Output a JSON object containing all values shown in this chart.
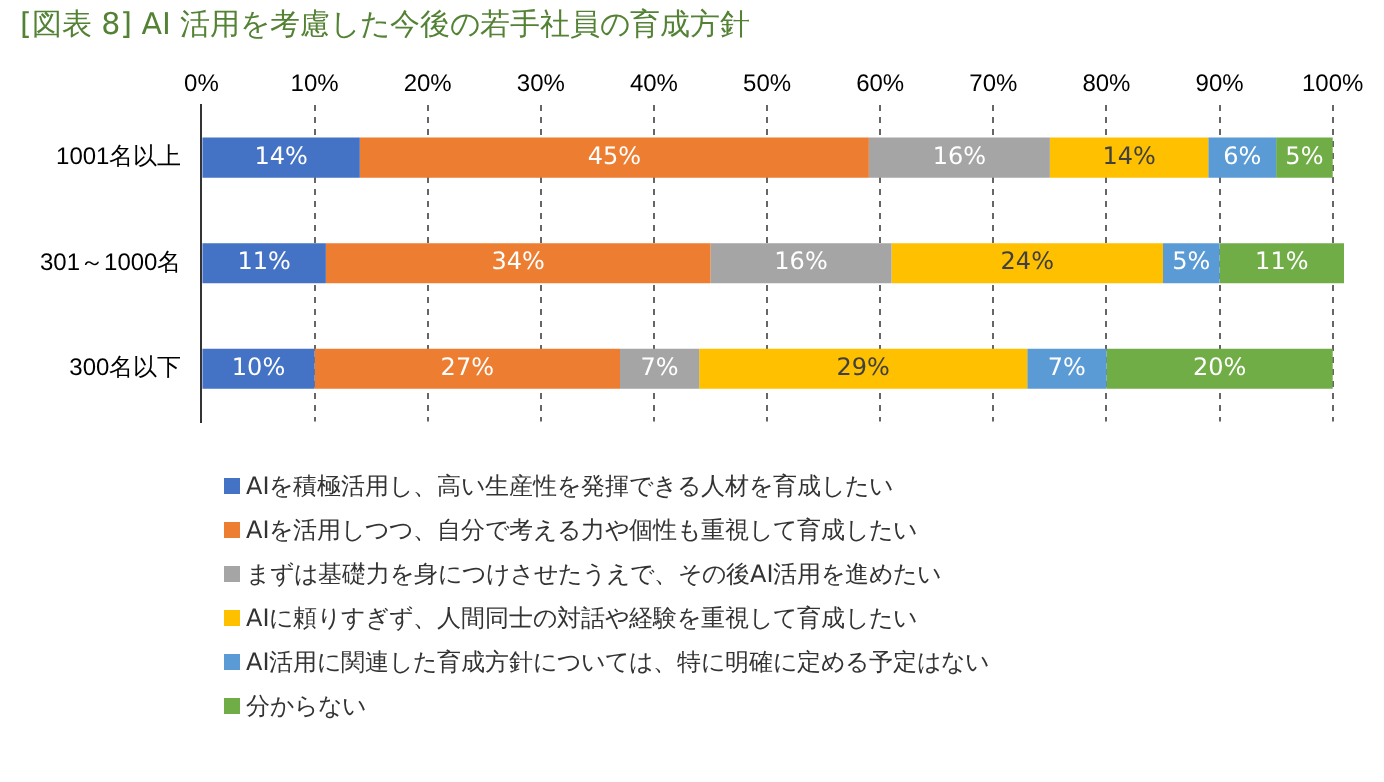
{
  "chart_data": {
    "type": "bar",
    "orientation": "horizontal",
    "stacked": true,
    "title": "[図表 8] AI 活用を考慮した今後の若手社員の育成方針",
    "categories": [
      "1001名以上",
      "301～1000名",
      "300名以下"
    ],
    "xlim": [
      0,
      101
    ],
    "xticks": [
      {
        "value": 0,
        "label": "0%"
      },
      {
        "value": 10,
        "label": "10%"
      },
      {
        "value": 20,
        "label": "20%"
      },
      {
        "value": 30,
        "label": "30%"
      },
      {
        "value": 40,
        "label": "40%"
      },
      {
        "value": 50,
        "label": "50%"
      },
      {
        "value": 60,
        "label": "60%"
      },
      {
        "value": 70,
        "label": "70%"
      },
      {
        "value": 80,
        "label": "80%"
      },
      {
        "value": 90,
        "label": "90%"
      },
      {
        "value": 100,
        "label": "100%"
      }
    ],
    "grid": "x",
    "legend": "bottom",
    "series": [
      {
        "name": "AIを積極活用し、高い生産性を発揮できる人材を育成したい",
        "color": "#4472c4",
        "values": [
          14,
          11,
          10
        ],
        "value_labels": [
          "14%",
          "11%",
          "10%"
        ]
      },
      {
        "name": "AIを活用しつつ、自分で考える力や個性も重視して育成したい",
        "color": "#ed7d31",
        "values": [
          45,
          34,
          27
        ],
        "value_labels": [
          "45%",
          "34%",
          "27%"
        ]
      },
      {
        "name": "まずは基礎力を身につけさせたうえで、その後AI活用を進めたい",
        "color": "#a5a5a5",
        "values": [
          16,
          16,
          7
        ],
        "value_labels": [
          "16%",
          "16%",
          "7%"
        ]
      },
      {
        "name": "AIに頼りすぎず、人間同士の対話や経験を重視して育成したい",
        "color": "#ffc000",
        "values": [
          14,
          24,
          29
        ],
        "value_labels": [
          "14%",
          "24%",
          "29%"
        ]
      },
      {
        "name": "AI活用に関連した育成方針については、特に明確に定める予定はない",
        "color": "#5b9bd5",
        "values": [
          6,
          5,
          7
        ],
        "value_labels": [
          "6%",
          "5%",
          "7%"
        ]
      },
      {
        "name": "分からない",
        "color": "#70ad47",
        "values": [
          5,
          11,
          20
        ],
        "value_labels": [
          "5%",
          "11%",
          "20%"
        ]
      }
    ]
  }
}
